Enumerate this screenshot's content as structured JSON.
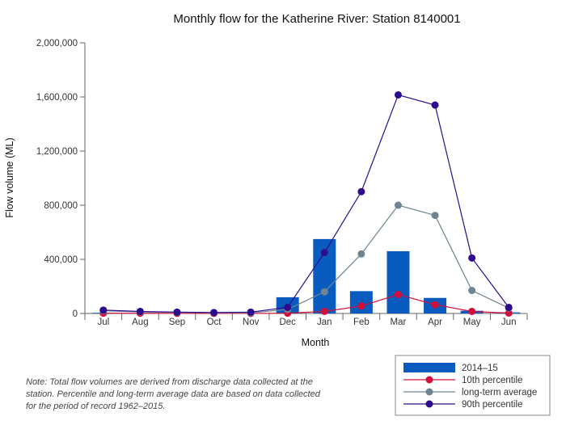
{
  "chart_data": {
    "type": "bar",
    "title": "Monthly flow for the Katherine River: Station 8140001",
    "xlabel": "Month",
    "ylabel": "Flow volume (ML)",
    "ylim": [
      0,
      2000000
    ],
    "yticks": [
      0,
      400000,
      800000,
      1200000,
      1600000,
      2000000
    ],
    "ytick_labels": [
      "0",
      "400,000",
      "800,000",
      "1,200,000",
      "1,600,000",
      "2,000,000"
    ],
    "categories": [
      "Jul",
      "Aug",
      "Sep",
      "Oct",
      "Nov",
      "Dec",
      "Jan",
      "Feb",
      "Mar",
      "Apr",
      "May",
      "Jun"
    ],
    "grid": false,
    "legend_position": "bottom-right",
    "series": [
      {
        "name": "2014–15",
        "kind": "bar",
        "color": "#0a5bbf",
        "values": [
          5000,
          3000,
          2000,
          1500,
          2000,
          120000,
          550000,
          165000,
          460000,
          115000,
          20000,
          8000
        ]
      },
      {
        "name": "10th percentile",
        "kind": "line",
        "color": "#d0103a",
        "values": [
          2000,
          1500,
          1000,
          500,
          500,
          2000,
          15000,
          55000,
          140000,
          65000,
          15000,
          3000
        ]
      },
      {
        "name": "long-term average",
        "kind": "line",
        "color": "#6e8591",
        "values": [
          20000,
          12000,
          8000,
          5000,
          5000,
          30000,
          160000,
          440000,
          800000,
          725000,
          170000,
          40000
        ]
      },
      {
        "name": "90th percentile",
        "kind": "line",
        "color": "#2e0a8c",
        "values": [
          25000,
          15000,
          10000,
          7000,
          10000,
          45000,
          450000,
          900000,
          1615000,
          1540000,
          410000,
          45000
        ]
      }
    ]
  },
  "note": "Note: Total flow volumes are derived from discharge data collected at the station. Percentile and long-term average data are based on data collected for the period of record 1962–2015."
}
